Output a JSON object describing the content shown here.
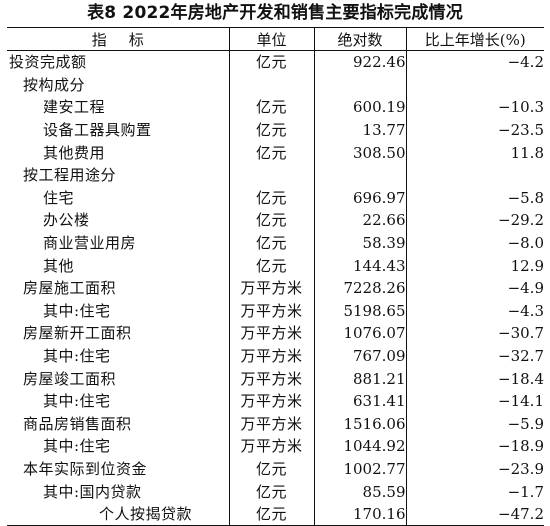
{
  "title": "表8  2022年房地产开发和销售主要指标完成情况",
  "header": {
    "indicator": "指标",
    "unit": "单位",
    "absolute": "绝对数",
    "growth": "比上年增长(%)"
  },
  "rows": [
    {
      "name": "投资完成额",
      "unit": "亿元",
      "value": "922.46",
      "growth": "−4.2"
    },
    {
      "name": "按构成分",
      "unit": "",
      "value": "",
      "growth": ""
    },
    {
      "name": "建安工程",
      "unit": "亿元",
      "value": "600.19",
      "growth": "−10.3"
    },
    {
      "name": "设备工器具购置",
      "unit": "亿元",
      "value": "13.77",
      "growth": "−23.5"
    },
    {
      "name": "其他费用",
      "unit": "亿元",
      "value": "308.50",
      "growth": "11.8"
    },
    {
      "name": "按工程用途分",
      "unit": "",
      "value": "",
      "growth": ""
    },
    {
      "name": "住宅",
      "unit": "亿元",
      "value": "696.97",
      "growth": "−5.8"
    },
    {
      "name": "办公楼",
      "unit": "亿元",
      "value": "22.66",
      "growth": "−29.2"
    },
    {
      "name": "商业营业用房",
      "unit": "亿元",
      "value": "58.39",
      "growth": "−8.0"
    },
    {
      "name": "其他",
      "unit": "亿元",
      "value": "144.43",
      "growth": "12.9"
    },
    {
      "name": "房屋施工面积",
      "unit": "万平方米",
      "value": "7228.26",
      "growth": "−4.9"
    },
    {
      "name": "其中:住宅",
      "unit": "万平方米",
      "value": "5198.65",
      "growth": "−4.3"
    },
    {
      "name": "房屋新开工面积",
      "unit": "万平方米",
      "value": "1076.07",
      "growth": "−30.7"
    },
    {
      "name": "其中:住宅",
      "unit": "万平方米",
      "value": "767.09",
      "growth": "−32.7"
    },
    {
      "name": "房屋竣工面积",
      "unit": "万平方米",
      "value": "881.21",
      "growth": "−18.4"
    },
    {
      "name": "其中:住宅",
      "unit": "万平方米",
      "value": "631.41",
      "growth": "−14.1"
    },
    {
      "name": "商品房销售面积",
      "unit": "万平方米",
      "value": "1516.06",
      "growth": "−5.9"
    },
    {
      "name": "其中:住宅",
      "unit": "万平方米",
      "value": "1044.92",
      "growth": "−18.9"
    },
    {
      "name": "本年实际到位资金",
      "unit": "亿元",
      "value": "1002.77",
      "growth": "−23.9"
    },
    {
      "name": "其中:国内贷款",
      "unit": "亿元",
      "value": "85.59",
      "growth": "−1.7"
    },
    {
      "name": "个人按揭贷款",
      "unit": "亿元",
      "value": "170.16",
      "growth": "−47.2"
    }
  ]
}
